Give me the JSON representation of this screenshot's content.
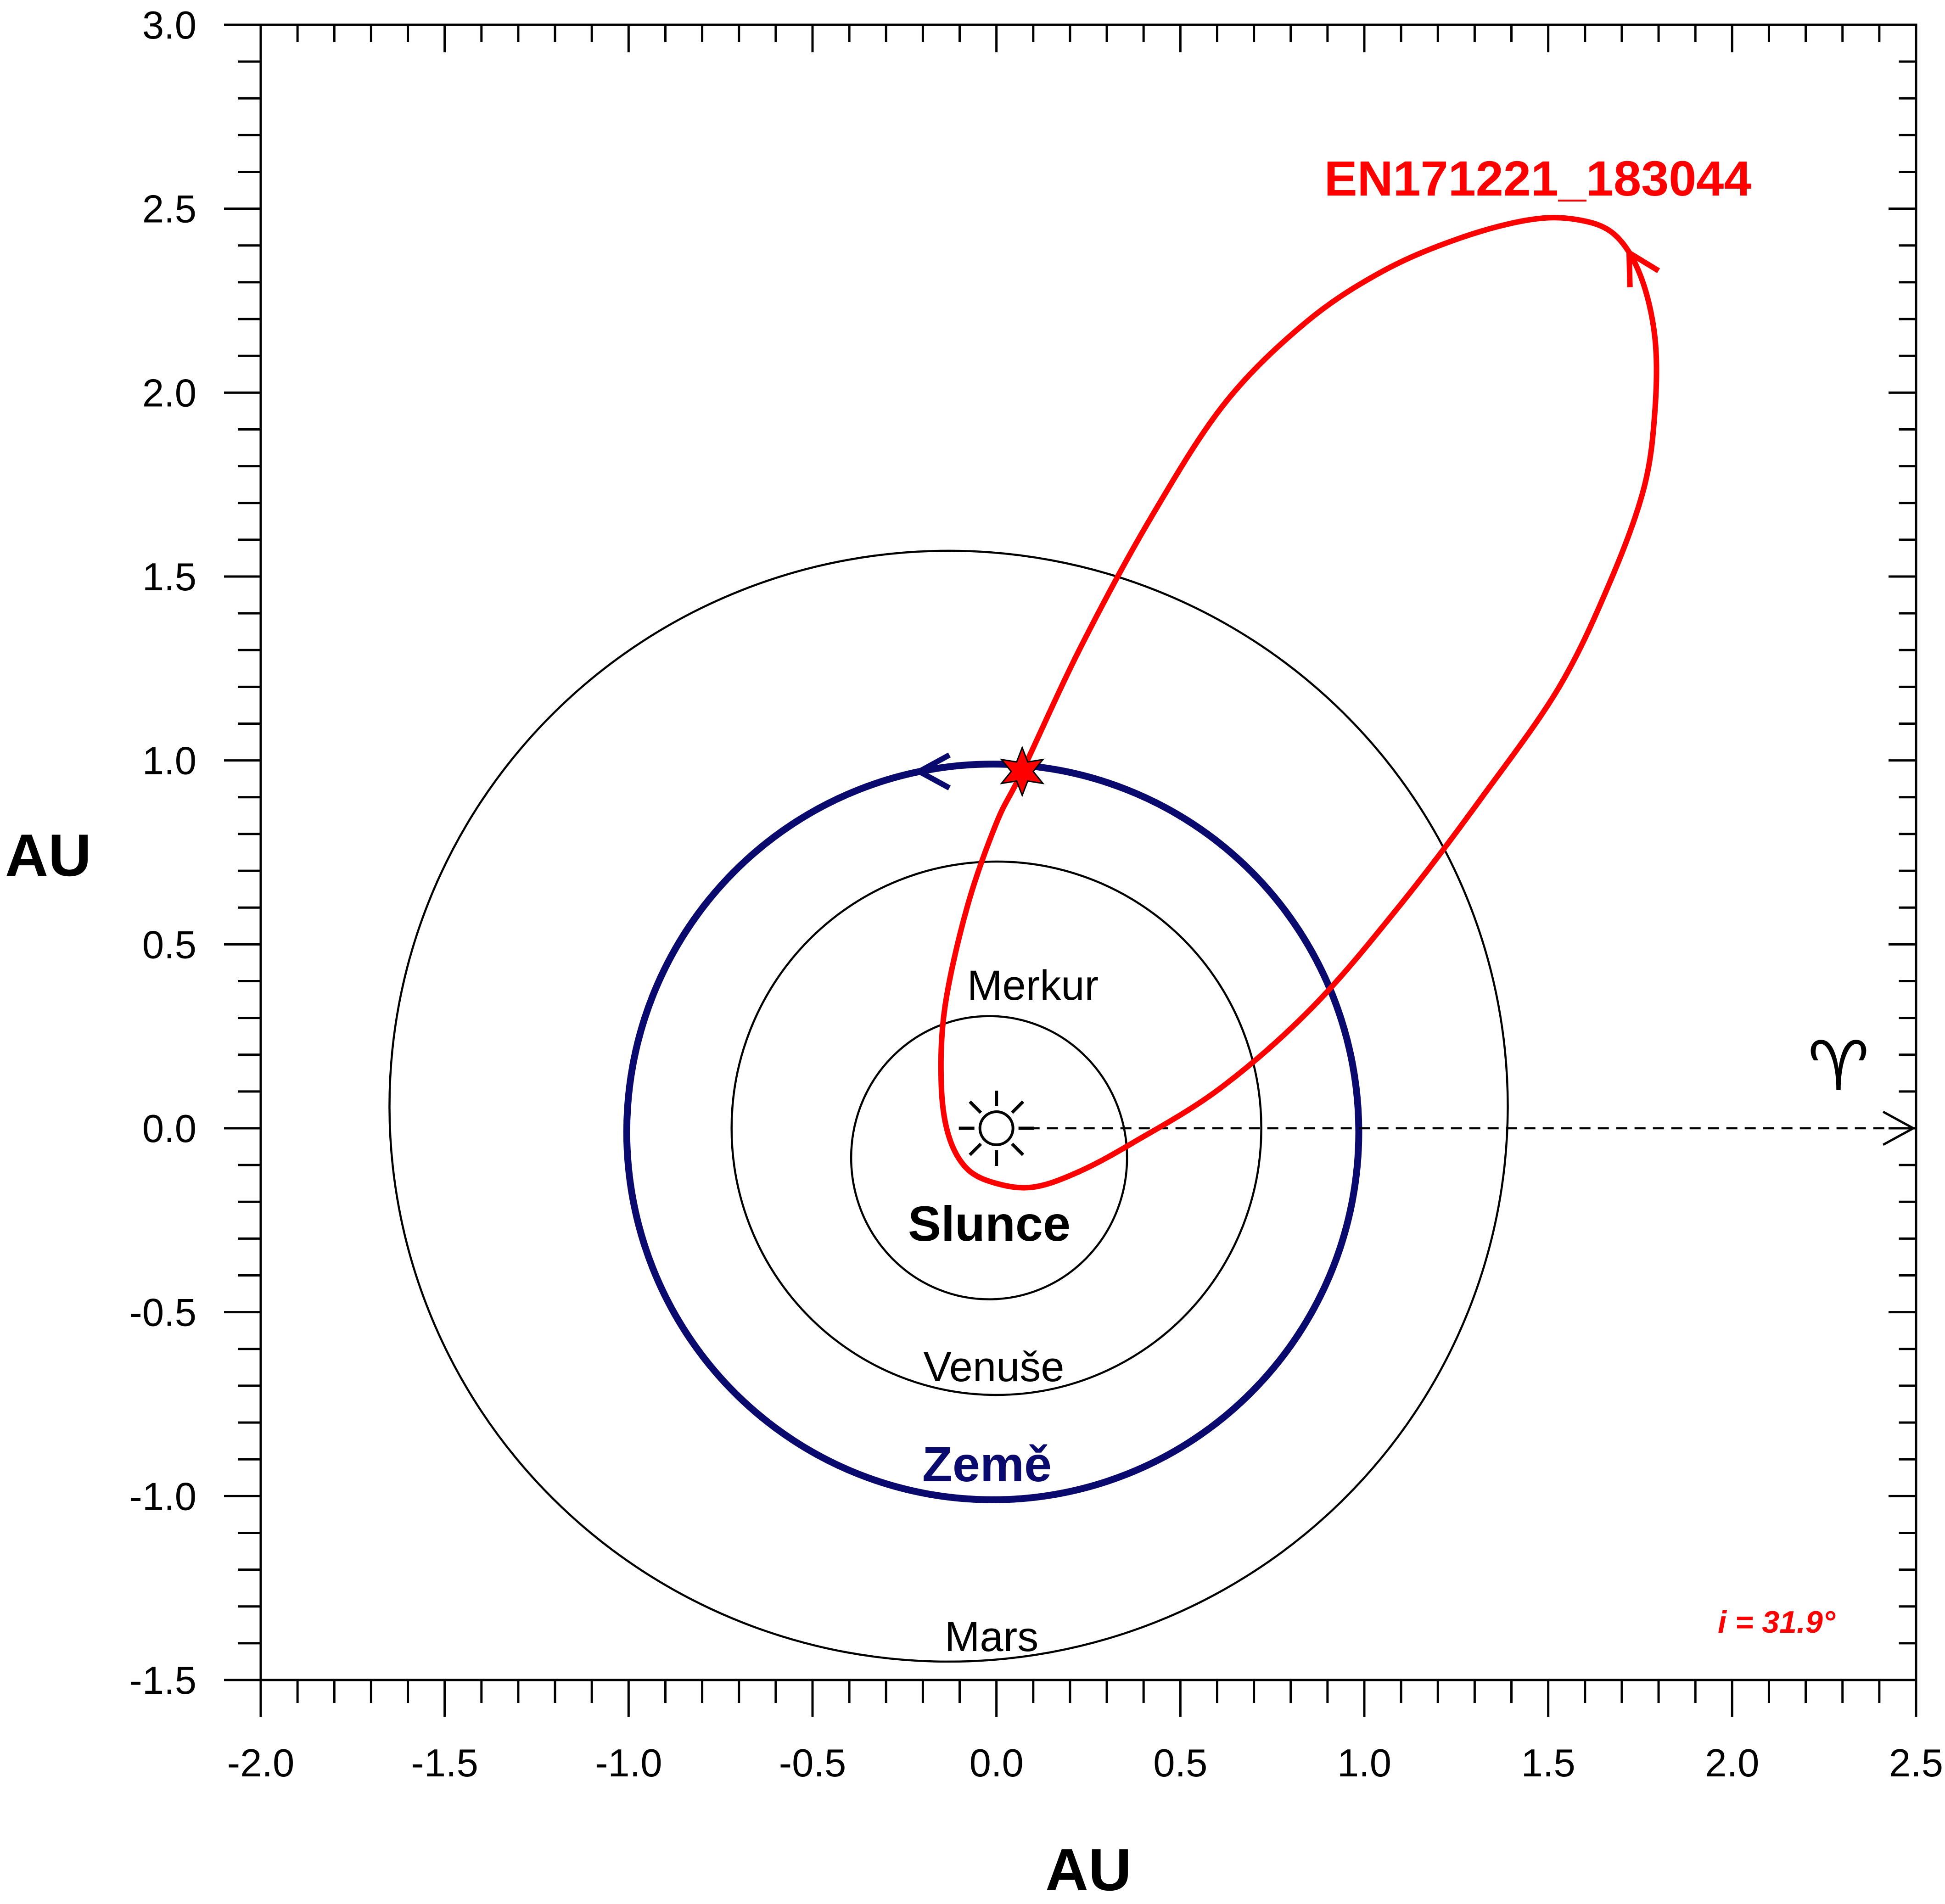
{
  "chart_data": {
    "type": "orbit-diagram",
    "xlabel": "AU",
    "ylabel": "AU",
    "xlim": [
      -2.0,
      2.5
    ],
    "ylim": [
      -1.5,
      3.0
    ],
    "x_ticks": [
      -2.0,
      -1.5,
      -1.0,
      -0.5,
      0.0,
      0.5,
      1.0,
      1.5,
      2.0,
      2.5
    ],
    "y_ticks": [
      -1.5,
      -1.0,
      -0.5,
      0.0,
      0.5,
      1.0,
      1.5,
      2.0,
      2.5,
      3.0
    ],
    "x_tick_labels": [
      "-2.0",
      "-1.5",
      "-1.0",
      "-0.5",
      "0.0",
      "0.5",
      "1.0",
      "1.5",
      "2.0",
      "2.5"
    ],
    "y_tick_labels": [
      "-1.5",
      "-1.0",
      "-0.5",
      "0.0",
      "0.5",
      "1.0",
      "1.5",
      "2.0",
      "2.5",
      "3.0"
    ],
    "minor_tick_step": 0.1,
    "grid": false,
    "sun": {
      "label": "Slunce",
      "x": 0.0,
      "y": 0.0
    },
    "planets": [
      {
        "name": "Merkur",
        "cx": -0.02,
        "cy": -0.08,
        "rx": 0.375,
        "ry": 0.385,
        "color": "#000000"
      },
      {
        "name": "Venuše",
        "cx": 0.0,
        "cy": 0.0,
        "rx": 0.72,
        "ry": 0.725,
        "color": "#000000"
      },
      {
        "name": "Země",
        "cx": -0.01,
        "cy": -0.01,
        "rx": 0.995,
        "ry": 1.0,
        "color": "#0a0a6e"
      },
      {
        "name": "Mars",
        "cx": -0.13,
        "cy": 0.06,
        "rx": 1.52,
        "ry": 1.51,
        "color": "#000000"
      }
    ],
    "meteoroid_orbit": {
      "name": "EN171221_183044",
      "color": "#ff0000",
      "inclination_label": "i = 31.9°",
      "points": [
        [
          0.07,
          0.97
        ],
        [
          0.23,
          1.31
        ],
        [
          0.42,
          1.66
        ],
        [
          0.62,
          1.97
        ],
        [
          0.84,
          2.19
        ],
        [
          1.05,
          2.33
        ],
        [
          1.26,
          2.42
        ],
        [
          1.45,
          2.47
        ],
        [
          1.58,
          2.47
        ],
        [
          1.68,
          2.43
        ],
        [
          1.75,
          2.32
        ],
        [
          1.79,
          2.15
        ],
        [
          1.79,
          1.95
        ],
        [
          1.76,
          1.74
        ],
        [
          1.67,
          1.49
        ],
        [
          1.53,
          1.2
        ],
        [
          1.32,
          0.9
        ],
        [
          1.1,
          0.61
        ],
        [
          0.86,
          0.33
        ],
        [
          0.61,
          0.11
        ],
        [
          0.37,
          -0.04
        ],
        [
          0.22,
          -0.12
        ],
        [
          0.1,
          -0.16
        ],
        [
          0.0,
          -0.15
        ],
        [
          -0.08,
          -0.11
        ],
        [
          -0.13,
          -0.02
        ],
        [
          -0.15,
          0.12
        ],
        [
          -0.14,
          0.33
        ],
        [
          -0.08,
          0.6
        ],
        [
          0.0,
          0.83
        ],
        [
          0.07,
          0.97
        ]
      ],
      "direction_arrow_at": [
        1.72,
        2.38
      ],
      "impact_point": [
        0.07,
        0.97
      ]
    },
    "earth_direction_arrow_at": [
      -0.21,
      0.97
    ],
    "vernal_equinox": {
      "symbol": "♈",
      "from": [
        0.0,
        0.0
      ],
      "to": [
        2.5,
        0.0
      ]
    }
  }
}
